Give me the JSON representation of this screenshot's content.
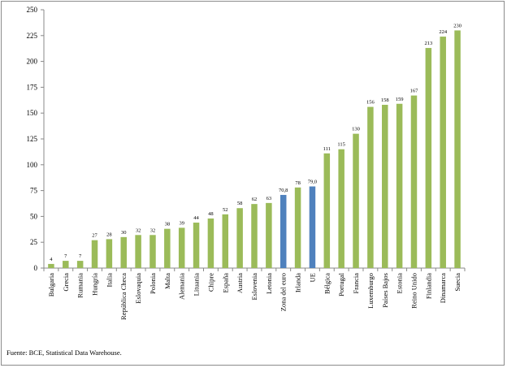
{
  "chart_data": {
    "type": "bar",
    "title": "",
    "xlabel": "",
    "ylabel": "",
    "ylim": [
      0,
      250
    ],
    "yticks": [
      0,
      25,
      50,
      75,
      100,
      125,
      150,
      175,
      200,
      225,
      250
    ],
    "grid": false,
    "legend": "none",
    "categories": [
      "Bulgaria",
      "Grecia",
      "Rumania",
      "Hungría",
      "Italia",
      "República Checa",
      "Eslovaquia",
      "Polonia",
      "Malta",
      "Alemania",
      "Lituania",
      "Chipre",
      "España",
      "Austria",
      "Eslovenia",
      "Letonia",
      "Zona del euro",
      "Irlanda",
      "UE",
      "Bélgica",
      "Portugal",
      "Francia",
      "Luxemburgo",
      "Países Bajos",
      "Estonia",
      "Reino Unido",
      "Finlandia",
      "Dinamarca",
      "Suecia"
    ],
    "values": [
      4,
      7,
      7,
      27,
      28,
      30,
      32,
      32,
      38,
      39,
      44,
      48,
      52,
      58,
      62,
      63,
      70.8,
      78,
      79.0,
      111,
      115,
      130,
      156,
      158,
      159,
      167,
      213,
      224,
      230
    ],
    "value_labels": [
      "4",
      "7",
      "7",
      "27",
      "28",
      "30",
      "32",
      "32",
      "38",
      "39",
      "44",
      "48",
      "52",
      "58",
      "62",
      "63",
      "70,8",
      "78",
      "79,0",
      "111",
      "115",
      "130",
      "156",
      "158",
      "159",
      "167",
      "213",
      "224",
      "230"
    ],
    "highlighted": [
      "Zona del euro",
      "UE"
    ],
    "colors": {
      "default": "#9bbb59",
      "highlight": "#4f81bd",
      "axis": "#888888"
    }
  },
  "source_note": "Fuente: BCE, Statistical Data Warehouse."
}
